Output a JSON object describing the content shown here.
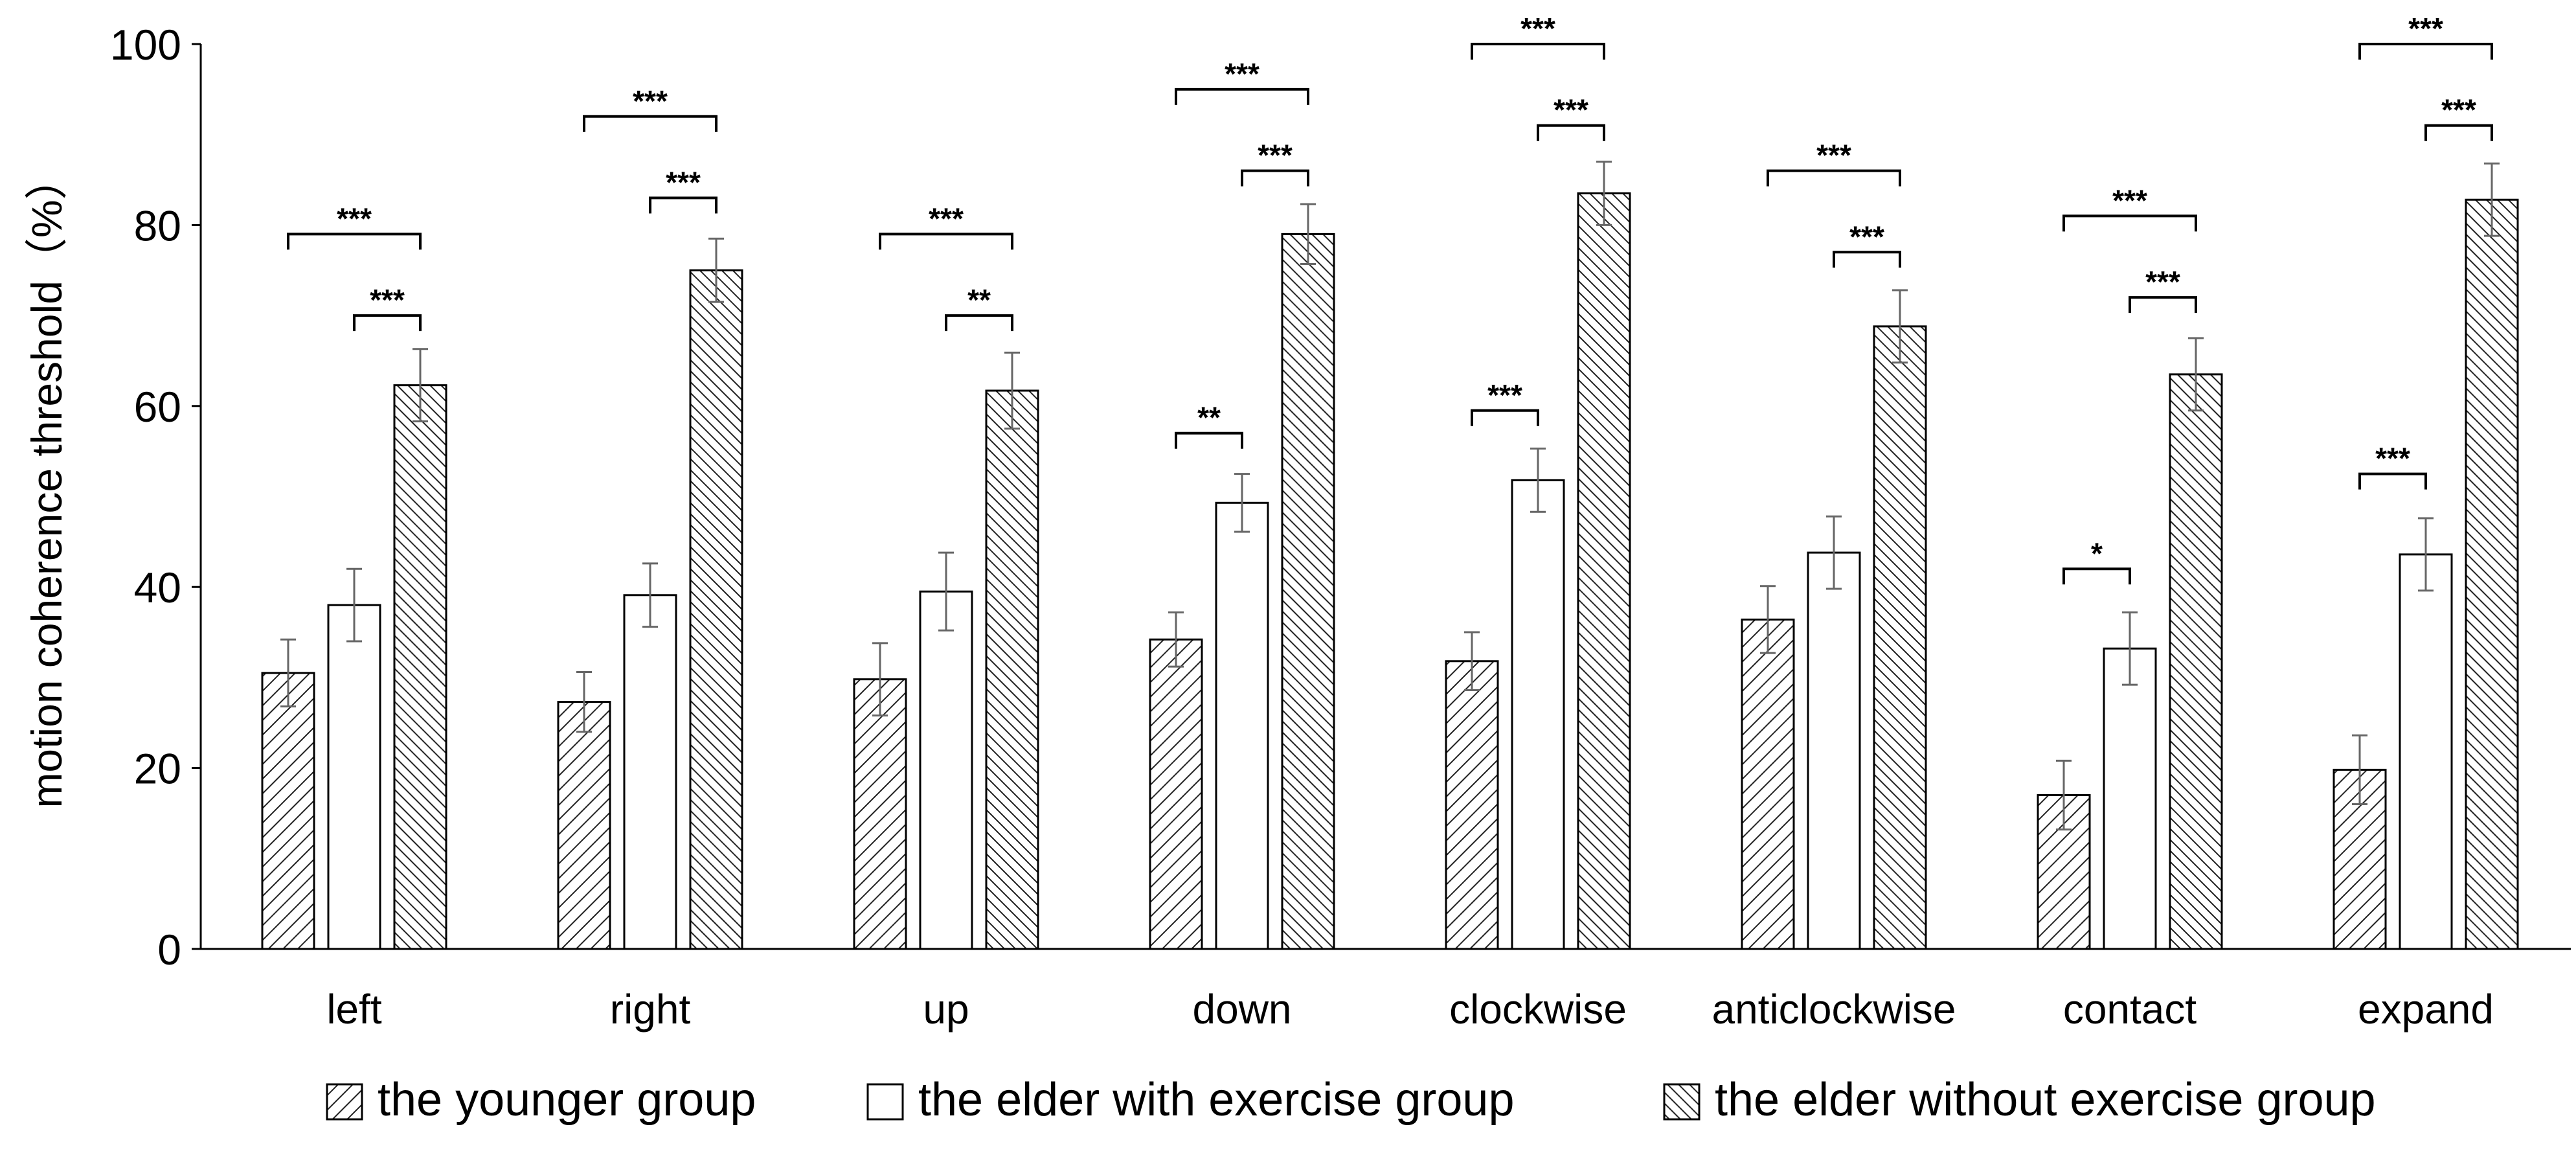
{
  "chart_data": {
    "type": "bar",
    "title": "",
    "xlabel": "",
    "ylabel": "motion coherence threshold（%）",
    "ylim": [
      0,
      100
    ],
    "yticks": [
      "0",
      "20",
      "40",
      "60",
      "80",
      "100"
    ],
    "grid": false,
    "legend_position": "bottom",
    "categories": [
      "left",
      "right",
      "up",
      "down",
      "clockwise",
      "anticlockwise",
      "contact",
      "expand"
    ],
    "series": [
      {
        "name": "the younger group",
        "pattern": "diag-up",
        "values": [
          30.5,
          27.3,
          29.8,
          34.2,
          31.8,
          36.4,
          17.0,
          19.8
        ],
        "errors": [
          3.7,
          3.3,
          4.0,
          3.0,
          3.2,
          3.7,
          3.8,
          3.8
        ]
      },
      {
        "name": "the elder with exercise group",
        "pattern": "white",
        "values": [
          38.0,
          39.1,
          39.5,
          49.3,
          51.8,
          43.8,
          33.2,
          43.6
        ],
        "errors": [
          4.0,
          3.5,
          4.3,
          3.2,
          3.5,
          4.0,
          4.0,
          4.0
        ]
      },
      {
        "name": "the elder without exercise group",
        "pattern": "diag-down",
        "values": [
          62.3,
          75.0,
          61.7,
          79.0,
          83.5,
          68.8,
          63.5,
          82.8
        ],
        "errors": [
          4.0,
          3.5,
          4.2,
          3.3,
          3.5,
          4.0,
          4.0,
          4.0
        ]
      }
    ],
    "significance": [
      {
        "category": 0,
        "from": 1,
        "to": 2,
        "label": "***",
        "y": 70
      },
      {
        "category": 0,
        "from": 0,
        "to": 2,
        "label": "***",
        "y": 79
      },
      {
        "category": 1,
        "from": 1,
        "to": 2,
        "label": "***",
        "y": 83
      },
      {
        "category": 1,
        "from": 0,
        "to": 2,
        "label": "***",
        "y": 92
      },
      {
        "category": 2,
        "from": 1,
        "to": 2,
        "label": "**",
        "y": 70
      },
      {
        "category": 2,
        "from": 0,
        "to": 2,
        "label": "***",
        "y": 79
      },
      {
        "category": 3,
        "from": 0,
        "to": 1,
        "label": "**",
        "y": 57
      },
      {
        "category": 3,
        "from": 1,
        "to": 2,
        "label": "***",
        "y": 86
      },
      {
        "category": 3,
        "from": 0,
        "to": 2,
        "label": "***",
        "y": 95
      },
      {
        "category": 4,
        "from": 0,
        "to": 1,
        "label": "***",
        "y": 59.5
      },
      {
        "category": 4,
        "from": 1,
        "to": 2,
        "label": "***",
        "y": 91
      },
      {
        "category": 4,
        "from": 0,
        "to": 2,
        "label": "***",
        "y": 100
      },
      {
        "category": 5,
        "from": 1,
        "to": 2,
        "label": "***",
        "y": 77
      },
      {
        "category": 5,
        "from": 0,
        "to": 2,
        "label": "***",
        "y": 86
      },
      {
        "category": 6,
        "from": 0,
        "to": 1,
        "label": "*",
        "y": 42
      },
      {
        "category": 6,
        "from": 1,
        "to": 2,
        "label": "***",
        "y": 72
      },
      {
        "category": 6,
        "from": 0,
        "to": 2,
        "label": "***",
        "y": 81
      },
      {
        "category": 7,
        "from": 0,
        "to": 1,
        "label": "***",
        "y": 52.5
      },
      {
        "category": 7,
        "from": 1,
        "to": 2,
        "label": "***",
        "y": 91
      },
      {
        "category": 7,
        "from": 0,
        "to": 2,
        "label": "***",
        "y": 100
      }
    ]
  }
}
